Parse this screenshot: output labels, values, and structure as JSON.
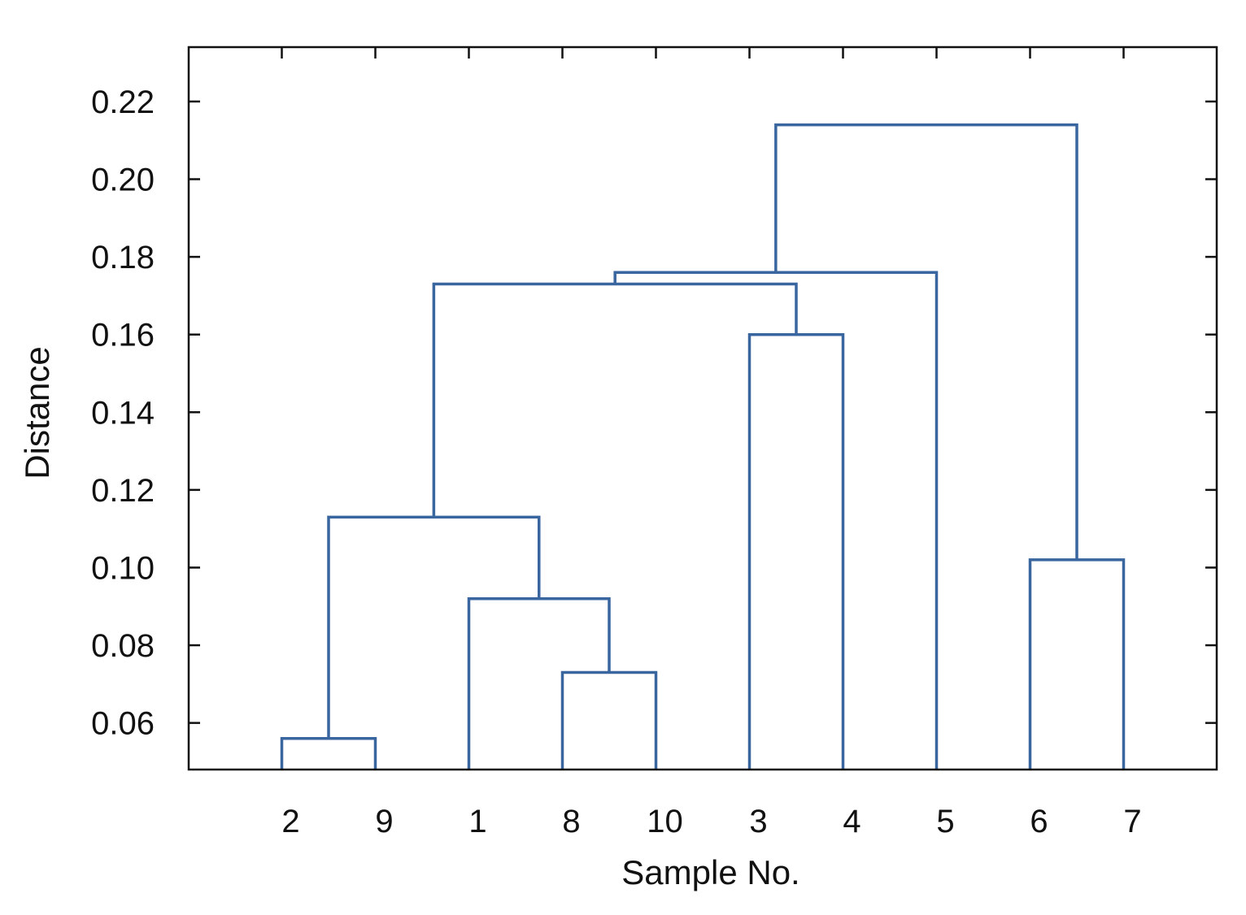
{
  "chart_data": {
    "type": "dendrogram",
    "xlabel": "Sample No.",
    "ylabel": "Distance",
    "ylim": [
      0.048,
      0.234
    ],
    "yticks": [
      0.06,
      0.08,
      0.1,
      0.12,
      0.14,
      0.16,
      0.18,
      0.2,
      0.22
    ],
    "ytick_labels": [
      "0.06",
      "0.08",
      "0.10",
      "0.12",
      "0.14",
      "0.16",
      "0.18",
      "0.20",
      "0.22"
    ],
    "leaf_order": [
      "2",
      "9",
      "1",
      "8",
      "10",
      "3",
      "4",
      "5",
      "6",
      "7"
    ],
    "x_minor_ticks": 11,
    "merges": [
      {
        "left": "2",
        "right": "9",
        "height": 0.056
      },
      {
        "left": "8",
        "right": "10",
        "height": 0.073
      },
      {
        "left": "1",
        "right": "8+10",
        "height": 0.092
      },
      {
        "left": "2+9",
        "right": "1+8+10",
        "height": 0.113
      },
      {
        "left": "3",
        "right": "4",
        "height": 0.16
      },
      {
        "left": "2+9+1+8+10",
        "right": "3+4",
        "height": 0.173
      },
      {
        "left": "2+9+1+8+10+3+4",
        "right": "5",
        "height": 0.176
      },
      {
        "left": "6",
        "right": "7",
        "height": 0.102
      },
      {
        "left": "2+9+1+8+10+3+4+5",
        "right": "6+7",
        "height": 0.214
      }
    ],
    "grid": false,
    "line_color": "#3a66a0"
  }
}
